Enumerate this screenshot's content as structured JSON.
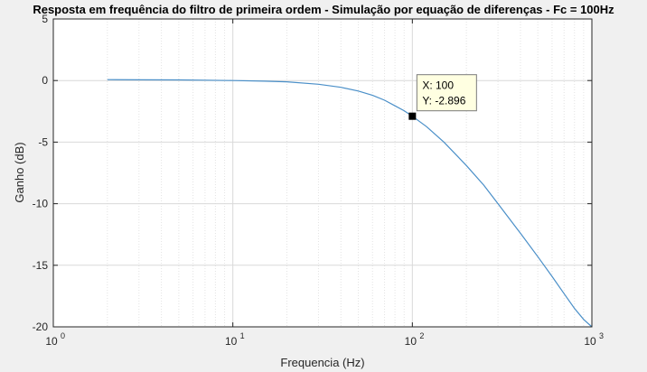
{
  "chart_data": {
    "type": "line",
    "title": "Resposta em frequência do filtro de primeira ordem - Simulação por equação de diferenças - Fc = 100Hz",
    "xlabel": "Frequencia (Hz)",
    "ylabel": "Ganho (dB)",
    "xscale": "log",
    "xlim": [
      1,
      1000
    ],
    "ylim": [
      -20,
      5
    ],
    "grid": true,
    "xticks": [
      1,
      10,
      100,
      1000
    ],
    "xtick_labels": [
      {
        "base": "10",
        "exp": "0"
      },
      {
        "base": "10",
        "exp": "1"
      },
      {
        "base": "10",
        "exp": "2"
      },
      {
        "base": "10",
        "exp": "3"
      }
    ],
    "yticks": [
      5,
      0,
      -5,
      -10,
      -15,
      -20
    ],
    "ytick_labels": [
      "5",
      "0",
      "-5",
      "-10",
      "-15",
      "-20"
    ],
    "line_color": "#4a8fc8",
    "series": [
      {
        "x": [
          2,
          3,
          5,
          7,
          10,
          15,
          20,
          30,
          40,
          50,
          60,
          70,
          80,
          90,
          100,
          120,
          150,
          200,
          250,
          300,
          400,
          500,
          600,
          700,
          800,
          900,
          1000
        ],
        "y": [
          0.07,
          0.06,
          0.05,
          0.03,
          0.0,
          -0.05,
          -0.1,
          -0.3,
          -0.55,
          -0.85,
          -1.2,
          -1.6,
          -2.05,
          -2.45,
          -2.896,
          -3.75,
          -5.0,
          -6.9,
          -8.5,
          -10.0,
          -12.4,
          -14.3,
          -15.9,
          -17.3,
          -18.5,
          -19.4,
          -20.0
        ]
      }
    ],
    "datatip": {
      "x": 100,
      "y": -2.896,
      "line1": "X: 100",
      "line2": "Y: -2.896"
    }
  }
}
